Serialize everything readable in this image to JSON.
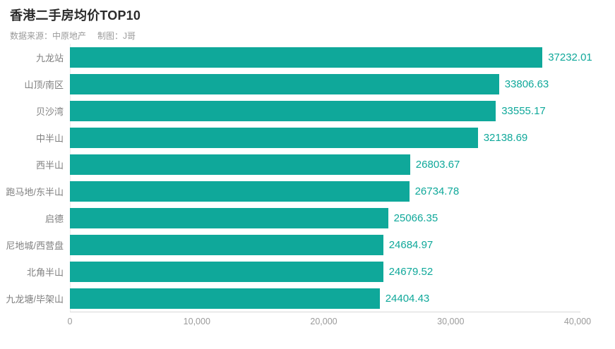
{
  "header": {
    "title": "香港二手房均价TOP10",
    "source_label": "数据来源：中原地产",
    "credit_label": "制图：J哥"
  },
  "chart_data": {
    "type": "bar",
    "orientation": "horizontal",
    "title": "香港二手房均价TOP10",
    "subtitle": "数据来源：中原地产 制图：J哥",
    "categories": [
      "九龙站",
      "山顶/南区",
      "贝沙湾",
      "中半山",
      "西半山",
      "跑马地/东半山",
      "启德",
      "尼地城/西营盘",
      "北角半山",
      "九龙塘/毕架山"
    ],
    "values": [
      37232.01,
      33806.63,
      33555.17,
      32138.69,
      26803.67,
      26734.78,
      25066.35,
      24684.97,
      24679.52,
      24404.43
    ],
    "value_labels": [
      "37232.01",
      "33806.63",
      "33555.17",
      "32138.69",
      "26803.67",
      "26734.78",
      "25066.35",
      "24684.97",
      "24679.52",
      "24404.43"
    ],
    "xlabel": "",
    "ylabel": "",
    "xlim": [
      0,
      40000
    ],
    "x_ticks": [
      {
        "value": 0,
        "label": "0"
      },
      {
        "value": 10000,
        "label": "10,000"
      },
      {
        "value": 20000,
        "label": "20,000"
      },
      {
        "value": 30000,
        "label": "30,000"
      },
      {
        "value": 40000,
        "label": "40,000"
      }
    ],
    "grid": false,
    "legend": "none",
    "colors": {
      "bar": "#0fa89a",
      "value_label": "#0fa89a",
      "category_label": "#7f7f7f",
      "tick_label": "#9a9a9a",
      "axis_line": "#d9d9d9",
      "title": "#2b2b2b",
      "subtitle": "#999999",
      "background": "#ffffff"
    }
  }
}
